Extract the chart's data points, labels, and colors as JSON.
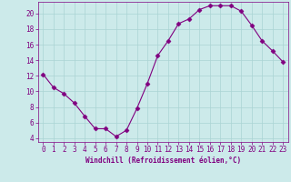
{
  "x": [
    0,
    1,
    2,
    3,
    4,
    5,
    6,
    7,
    8,
    9,
    10,
    11,
    12,
    13,
    14,
    15,
    16,
    17,
    18,
    19,
    20,
    21,
    22,
    23
  ],
  "y": [
    12.2,
    10.5,
    9.7,
    8.5,
    6.8,
    5.2,
    5.2,
    4.2,
    5.0,
    7.8,
    11.0,
    14.6,
    16.5,
    18.7,
    19.3,
    20.5,
    21.0,
    21.0,
    21.0,
    20.3,
    18.5,
    16.5,
    15.2,
    13.8
  ],
  "line_color": "#800080",
  "marker": "D",
  "marker_size": 2.5,
  "bg_color": "#cceaea",
  "grid_color": "#aad4d4",
  "xlabel": "Windchill (Refroidissement éolien,°C)",
  "xlabel_fontsize": 5.5,
  "tick_fontsize": 5.5,
  "ylim": [
    3.5,
    21.5
  ],
  "xlim": [
    -0.5,
    23.5
  ],
  "yticks": [
    4,
    6,
    8,
    10,
    12,
    14,
    16,
    18,
    20
  ],
  "xticks": [
    0,
    1,
    2,
    3,
    4,
    5,
    6,
    7,
    8,
    9,
    10,
    11,
    12,
    13,
    14,
    15,
    16,
    17,
    18,
    19,
    20,
    21,
    22,
    23
  ]
}
